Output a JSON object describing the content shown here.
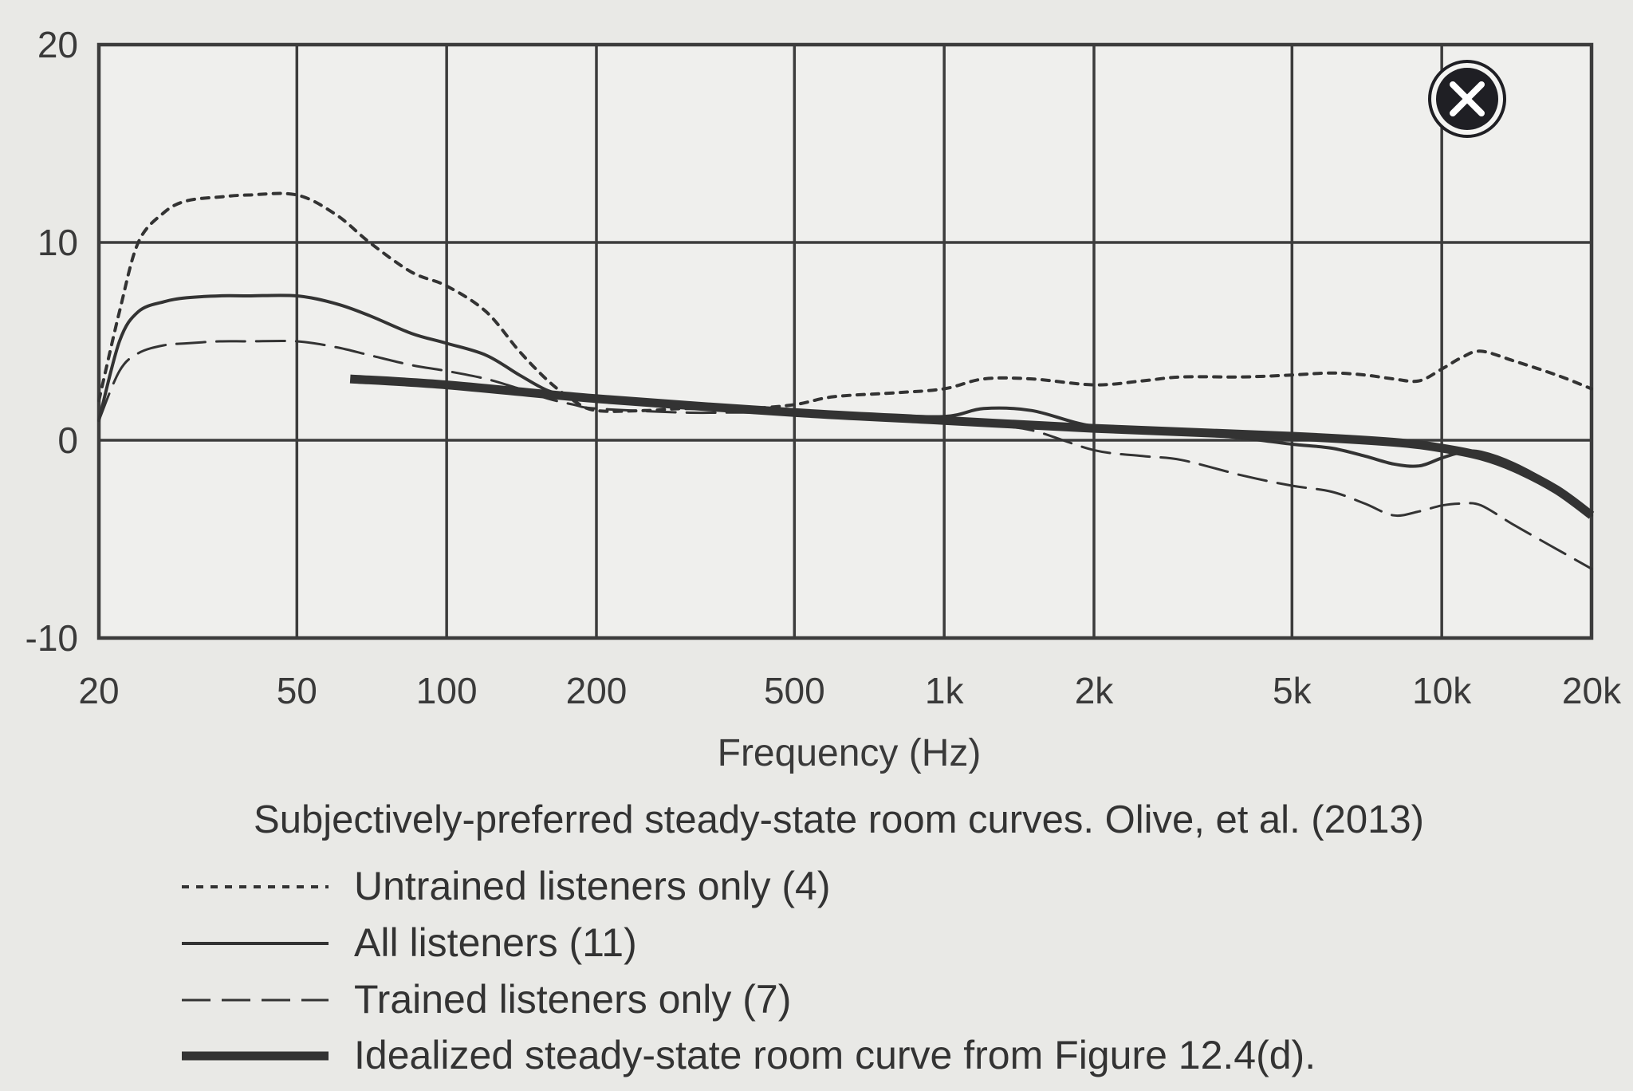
{
  "chart_data": {
    "type": "line",
    "title": "",
    "caption": "Subjectively-preferred steady-state room curves. Olive, et al. (2013)",
    "xlabel": "Frequency (Hz)",
    "ylabel": "",
    "x_scale": "log",
    "xlim": [
      20,
      20000
    ],
    "ylim": [
      -10,
      20
    ],
    "x_ticks": [
      20,
      50,
      100,
      200,
      500,
      1000,
      2000,
      5000,
      10000,
      20000
    ],
    "x_tick_labels": [
      "20",
      "50",
      "100",
      "200",
      "500",
      "1k",
      "2k",
      "5k",
      "10k",
      "20k"
    ],
    "y_ticks": [
      -10,
      0,
      10,
      20
    ],
    "y_tick_labels": [
      "-10",
      "0",
      "10",
      "20"
    ],
    "grid": true,
    "legend_position": "below",
    "series": [
      {
        "name": "Untrained listeners only (4)",
        "style": "dotted",
        "color": "#333333",
        "x": [
          20,
          22,
          24,
          27,
          30,
          35,
          40,
          50,
          60,
          70,
          85,
          100,
          120,
          140,
          160,
          180,
          200,
          250,
          300,
          400,
          500,
          600,
          800,
          1000,
          1200,
          1500,
          2000,
          2500,
          3000,
          4000,
          5000,
          6000,
          7000,
          8000,
          9000,
          10000,
          11000,
          12000,
          14000,
          17000,
          20000
        ],
        "y": [
          2,
          6.5,
          10,
          11.5,
          12.1,
          12.3,
          12.4,
          12.4,
          11.4,
          10,
          8.5,
          7.8,
          6.5,
          4.5,
          3,
          2,
          1.5,
          1.5,
          1.6,
          1.6,
          1.8,
          2.2,
          2.4,
          2.6,
          3.1,
          3.1,
          2.8,
          3.0,
          3.2,
          3.2,
          3.3,
          3.4,
          3.3,
          3.1,
          3.0,
          3.6,
          4.2,
          4.5,
          4.0,
          3.3,
          2.6
        ]
      },
      {
        "name": "All listeners (11)",
        "style": "solid",
        "color": "#333333",
        "x": [
          20,
          22,
          24,
          27,
          30,
          35,
          40,
          50,
          60,
          70,
          85,
          100,
          120,
          140,
          160,
          180,
          200,
          300,
          400,
          500,
          700,
          1000,
          1200,
          1500,
          2000,
          3000,
          4000,
          5000,
          6000,
          7000,
          8000,
          9000,
          10000,
          11000,
          12000,
          14000,
          17000,
          20000
        ],
        "y": [
          1,
          5,
          6.5,
          7,
          7.2,
          7.3,
          7.3,
          7.3,
          6.9,
          6.3,
          5.4,
          4.9,
          4.3,
          3.3,
          2.5,
          2.2,
          2.1,
          1.9,
          1.6,
          1.5,
          1.3,
          1.2,
          1.6,
          1.5,
          0.7,
          0.4,
          0.1,
          -0.2,
          -0.4,
          -0.8,
          -1.2,
          -1.3,
          -0.9,
          -0.6,
          -0.6,
          -1.2,
          -2.4,
          -3.8
        ]
      },
      {
        "name": "Trained listeners only (7)",
        "style": "dashed",
        "color": "#333333",
        "x": [
          20,
          22,
          24,
          27,
          30,
          35,
          40,
          50,
          60,
          70,
          85,
          100,
          120,
          140,
          160,
          180,
          200,
          300,
          400,
          500,
          700,
          1000,
          1200,
          1500,
          2000,
          2500,
          3000,
          4000,
          5000,
          6000,
          7000,
          8000,
          9000,
          10000,
          11000,
          12000,
          14000,
          17000,
          20000
        ],
        "y": [
          1,
          3.5,
          4.4,
          4.8,
          4.9,
          5.0,
          5.0,
          5.0,
          4.7,
          4.3,
          3.8,
          3.5,
          3.1,
          2.6,
          2.1,
          1.8,
          1.6,
          1.4,
          1.4,
          1.3,
          1.2,
          1.0,
          0.8,
          0.5,
          -0.5,
          -0.8,
          -1.0,
          -1.8,
          -2.3,
          -2.6,
          -3.2,
          -3.8,
          -3.6,
          -3.3,
          -3.2,
          -3.3,
          -4.3,
          -5.5,
          -6.5
        ]
      },
      {
        "name": "Idealized steady-state room curve from Figure 12.4(d).",
        "style": "thick",
        "color": "#333333",
        "x": [
          64,
          100,
          200,
          500,
          1000,
          2000,
          5000,
          8000,
          10000,
          12000,
          14000,
          17000,
          20000
        ],
        "y": [
          3.1,
          2.8,
          2.1,
          1.4,
          1.0,
          0.6,
          0.2,
          -0.1,
          -0.4,
          -0.8,
          -1.4,
          -2.5,
          -3.8
        ]
      }
    ]
  },
  "close_icon": {
    "name": "close-icon",
    "color": "#1f1f24"
  }
}
